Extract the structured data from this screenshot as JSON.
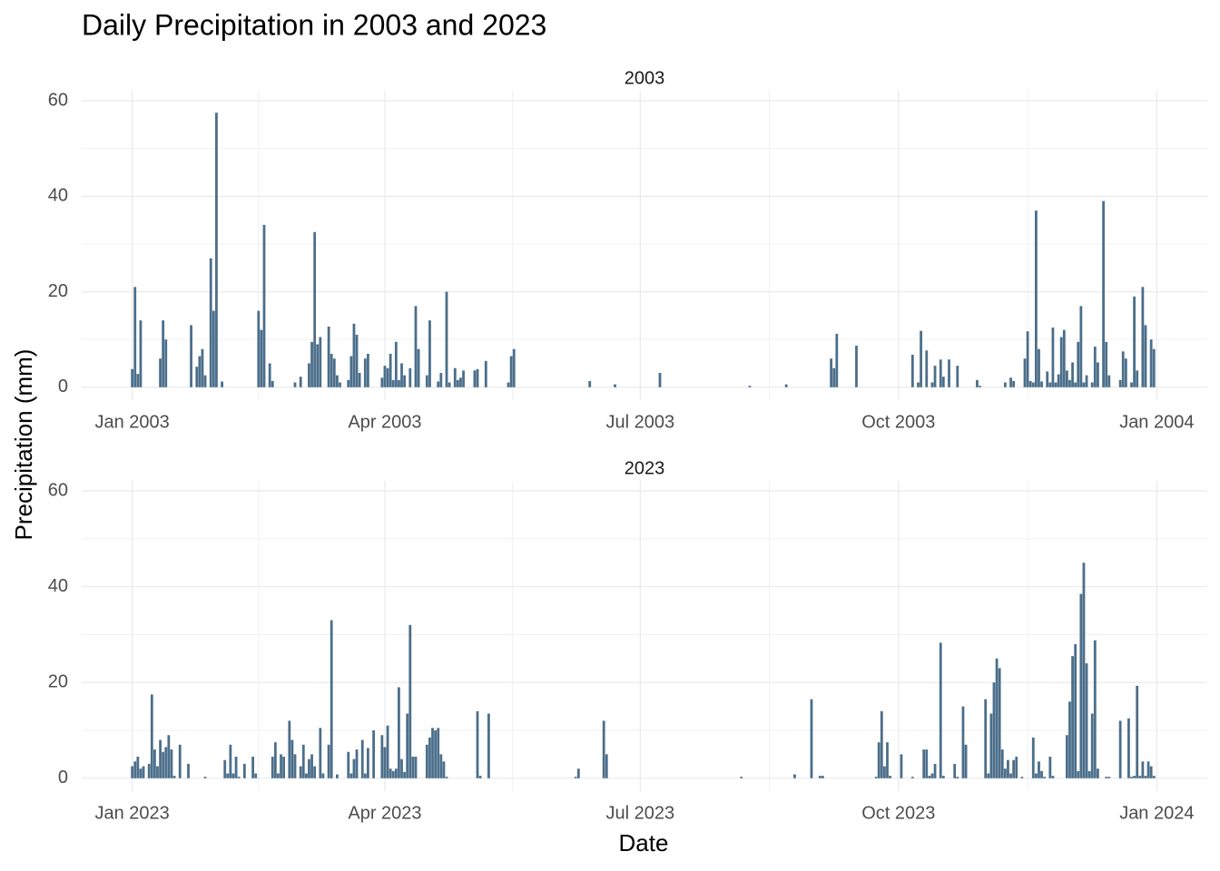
{
  "title": "Daily Precipitation in 2003 and 2023",
  "x_label": "Date",
  "y_label": "Precipitation (mm)",
  "chart_data": [
    {
      "type": "bar",
      "title": "2003",
      "color": "#4b6e8a",
      "grid": true,
      "xlim": [
        "2002-12-14",
        "2004-01-19"
      ],
      "xticks": [
        {
          "value": "2003-01-01",
          "label": "Jan 2003"
        },
        {
          "value": "2003-04-01",
          "label": "Apr 2003"
        },
        {
          "value": "2003-07-01",
          "label": "Jul 2003"
        },
        {
          "value": "2003-10-01",
          "label": "Oct 2003"
        },
        {
          "value": "2004-01-01",
          "label": "Jan 2004"
        }
      ],
      "ylim": [
        -2.7,
        62.1
      ],
      "yticks": [
        0,
        20,
        40,
        60
      ],
      "x": [
        "2003-01-01",
        "2003-01-02",
        "2003-01-03",
        "2003-01-04",
        "2003-01-11",
        "2003-01-12",
        "2003-01-13",
        "2003-01-22",
        "2003-01-24",
        "2003-01-25",
        "2003-01-26",
        "2003-01-27",
        "2003-01-29",
        "2003-01-30",
        "2003-01-31",
        "2003-02-02",
        "2003-02-15",
        "2003-02-16",
        "2003-02-17",
        "2003-02-19",
        "2003-02-20",
        "2003-02-28",
        "2003-03-02",
        "2003-03-05",
        "2003-03-06",
        "2003-03-07",
        "2003-03-08",
        "2003-03-09",
        "2003-03-12",
        "2003-03-13",
        "2003-03-14",
        "2003-03-15",
        "2003-03-16",
        "2003-03-19",
        "2003-03-20",
        "2003-03-21",
        "2003-03-22",
        "2003-03-23",
        "2003-03-25",
        "2003-03-26",
        "2003-03-31",
        "2003-04-01",
        "2003-04-02",
        "2003-04-03",
        "2003-04-04",
        "2003-04-05",
        "2003-04-06",
        "2003-04-07",
        "2003-04-08",
        "2003-04-10",
        "2003-04-12",
        "2003-04-13",
        "2003-04-16",
        "2003-04-17",
        "2003-04-20",
        "2003-04-21",
        "2003-04-23",
        "2003-04-24",
        "2003-04-26",
        "2003-04-27",
        "2003-04-28",
        "2003-04-29",
        "2003-05-03",
        "2003-05-04",
        "2003-05-07",
        "2003-05-15",
        "2003-05-16",
        "2003-05-17",
        "2003-06-13",
        "2003-06-22",
        "2003-07-08",
        "2003-08-09",
        "2003-08-22",
        "2003-09-07",
        "2003-09-08",
        "2003-09-09",
        "2003-09-16",
        "2003-10-06",
        "2003-10-08",
        "2003-10-09",
        "2003-10-11",
        "2003-10-13",
        "2003-10-14",
        "2003-10-16",
        "2003-10-17",
        "2003-10-19",
        "2003-10-22",
        "2003-10-29",
        "2003-10-30",
        "2003-11-08",
        "2003-11-10",
        "2003-11-11",
        "2003-11-15",
        "2003-11-16",
        "2003-11-17",
        "2003-11-18",
        "2003-11-19",
        "2003-11-20",
        "2003-11-21",
        "2003-11-23",
        "2003-11-24",
        "2003-11-25",
        "2003-11-26",
        "2003-11-27",
        "2003-11-28",
        "2003-11-29",
        "2003-11-30",
        "2003-12-01",
        "2003-12-02",
        "2003-12-03",
        "2003-12-04",
        "2003-12-05",
        "2003-12-06",
        "2003-12-07",
        "2003-12-09",
        "2003-12-10",
        "2003-12-11",
        "2003-12-13",
        "2003-12-14",
        "2003-12-15",
        "2003-12-19",
        "2003-12-20",
        "2003-12-21",
        "2003-12-23",
        "2003-12-24",
        "2003-12-25",
        "2003-12-27",
        "2003-12-28",
        "2003-12-30",
        "2003-12-31"
      ],
      "values": [
        3.8,
        21,
        2.8,
        14,
        6,
        14,
        10,
        13,
        4.3,
        6.5,
        8,
        2.5,
        27,
        16,
        57.5,
        1.2,
        16,
        12,
        34,
        5,
        1.3,
        1,
        2.2,
        5,
        9.5,
        32.5,
        9,
        10.5,
        12.7,
        7,
        6,
        2.5,
        1,
        1.5,
        6.5,
        13.3,
        11,
        3,
        6,
        7,
        2,
        4.5,
        4,
        7,
        1.5,
        9.5,
        1.5,
        5,
        2.5,
        4,
        17,
        8,
        2.5,
        14,
        1.2,
        3,
        20,
        1,
        4,
        1.5,
        2,
        3.5,
        3.5,
        3.8,
        5.5,
        1,
        6.5,
        8,
        1.3,
        0.6,
        3,
        0.3,
        0.6,
        6,
        4,
        11.2,
        8.7,
        6.8,
        1,
        11.8,
        7.7,
        1,
        4.5,
        5.8,
        2.2,
        5.8,
        4.5,
        1.5,
        0.3,
        1,
        2,
        1.3,
        6,
        11.7,
        1.3,
        1,
        37,
        8,
        1.2,
        3.3,
        1,
        12.5,
        1,
        2.7,
        10.5,
        12,
        3.5,
        1.5,
        5.2,
        1,
        9.5,
        17,
        1,
        2.5,
        1,
        8.5,
        5.2,
        39,
        9.5,
        2.5,
        1.5,
        7.5,
        6,
        1,
        19,
        3.5,
        21,
        13,
        10,
        8
      ]
    },
    {
      "type": "bar",
      "title": "2023",
      "color": "#4b6e8a",
      "grid": true,
      "xlim": [
        "2022-12-14",
        "2024-01-19"
      ],
      "xticks": [
        {
          "value": "2023-01-01",
          "label": "Jan 2023"
        },
        {
          "value": "2023-04-01",
          "label": "Apr 2023"
        },
        {
          "value": "2023-07-01",
          "label": "Jul 2023"
        },
        {
          "value": "2023-10-01",
          "label": "Oct 2023"
        },
        {
          "value": "2024-01-01",
          "label": "Jan 2024"
        }
      ],
      "ylim": [
        -2.7,
        62.1
      ],
      "yticks": [
        0,
        20,
        40,
        60
      ],
      "x": [
        "2023-01-01",
        "2023-01-02",
        "2023-01-03",
        "2023-01-04",
        "2023-01-05",
        "2023-01-07",
        "2023-01-08",
        "2023-01-09",
        "2023-01-10",
        "2023-01-11",
        "2023-01-12",
        "2023-01-13",
        "2023-01-14",
        "2023-01-15",
        "2023-01-16",
        "2023-01-18",
        "2023-01-21",
        "2023-01-27",
        "2023-02-03",
        "2023-02-04",
        "2023-02-05",
        "2023-02-06",
        "2023-02-07",
        "2023-02-08",
        "2023-02-10",
        "2023-02-13",
        "2023-02-14",
        "2023-02-20",
        "2023-02-21",
        "2023-02-22",
        "2023-02-23",
        "2023-02-24",
        "2023-02-26",
        "2023-02-27",
        "2023-02-28",
        "2023-03-02",
        "2023-03-03",
        "2023-03-04",
        "2023-03-05",
        "2023-03-06",
        "2023-03-07",
        "2023-03-09",
        "2023-03-10",
        "2023-03-12",
        "2023-03-13",
        "2023-03-15",
        "2023-03-19",
        "2023-03-20",
        "2023-03-21",
        "2023-03-22",
        "2023-03-24",
        "2023-03-25",
        "2023-03-26",
        "2023-03-28",
        "2023-03-31",
        "2023-04-01",
        "2023-04-02",
        "2023-04-03",
        "2023-04-04",
        "2023-04-05",
        "2023-04-06",
        "2023-04-07",
        "2023-04-08",
        "2023-04-09",
        "2023-04-10",
        "2023-04-11",
        "2023-04-12",
        "2023-04-16",
        "2023-04-17",
        "2023-04-18",
        "2023-04-19",
        "2023-04-20",
        "2023-04-21",
        "2023-04-22",
        "2023-04-23",
        "2023-05-04",
        "2023-05-05",
        "2023-05-08",
        "2023-06-08",
        "2023-06-09",
        "2023-06-18",
        "2023-06-19",
        "2023-08-06",
        "2023-08-25",
        "2023-08-31",
        "2023-09-03",
        "2023-09-04",
        "2023-09-23",
        "2023-09-24",
        "2023-09-25",
        "2023-09-26",
        "2023-09-27",
        "2023-09-28",
        "2023-10-02",
        "2023-10-06",
        "2023-10-10",
        "2023-10-11",
        "2023-10-12",
        "2023-10-13",
        "2023-10-14",
        "2023-10-16",
        "2023-10-17",
        "2023-10-21",
        "2023-10-22",
        "2023-10-24",
        "2023-10-25",
        "2023-11-01",
        "2023-11-02",
        "2023-11-03",
        "2023-11-04",
        "2023-11-05",
        "2023-11-06",
        "2023-11-07",
        "2023-11-08",
        "2023-11-09",
        "2023-11-10",
        "2023-11-11",
        "2023-11-12",
        "2023-11-14",
        "2023-11-18",
        "2023-11-19",
        "2023-11-20",
        "2023-11-21",
        "2023-11-22",
        "2023-11-24",
        "2023-11-25",
        "2023-11-30",
        "2023-12-01",
        "2023-12-02",
        "2023-12-03",
        "2023-12-04",
        "2023-12-05",
        "2023-12-06",
        "2023-12-07",
        "2023-12-08",
        "2023-12-09",
        "2023-12-10",
        "2023-12-11",
        "2023-12-14",
        "2023-12-15",
        "2023-12-19",
        "2023-12-22",
        "2023-12-23",
        "2023-12-24",
        "2023-12-25",
        "2023-12-26",
        "2023-12-27",
        "2023-12-28",
        "2023-12-29",
        "2023-12-30",
        "2023-12-31"
      ],
      "values": [
        2.5,
        3.5,
        4.5,
        2,
        2.5,
        3,
        17.5,
        6,
        2.5,
        8,
        5.5,
        6.5,
        9,
        6,
        0.5,
        7,
        3,
        0.3,
        3.8,
        1,
        7,
        1,
        4.5,
        0.3,
        3,
        4.5,
        1,
        4.5,
        7.5,
        1,
        5,
        4.5,
        12,
        8,
        5,
        2.5,
        7,
        1,
        4,
        5,
        2.5,
        10.5,
        1,
        7,
        33,
        0.8,
        5.5,
        1,
        4,
        6,
        8,
        1,
        6.3,
        10,
        9,
        6.5,
        11,
        2,
        1.5,
        2,
        19,
        4,
        1.3,
        13.5,
        32,
        4.5,
        4.5,
        7,
        8.5,
        10.5,
        10,
        10.5,
        5,
        3.5,
        0.3,
        14,
        0.5,
        13.5,
        0.3,
        2,
        12,
        5,
        0.3,
        0.8,
        16.5,
        0.5,
        0.5,
        0.3,
        7.5,
        14,
        2.5,
        7.5,
        0.5,
        5,
        0.3,
        6,
        6,
        0.5,
        1,
        3,
        28.3,
        0.5,
        3,
        0.3,
        15,
        7,
        16.5,
        1,
        13.5,
        20,
        25,
        23,
        6,
        2,
        3.8,
        1,
        3.8,
        4.5,
        0.3,
        8.5,
        1,
        3.5,
        1.5,
        0.3,
        4.5,
        0.5,
        9,
        16,
        25.5,
        28,
        1.5,
        38.5,
        45,
        24,
        1.5,
        13.5,
        28.8,
        2,
        0.3,
        0.3,
        12,
        12.5,
        0.3,
        0.5,
        19.3,
        0.5,
        3.5,
        0.5,
        3.5,
        2.5,
        0.5
      ]
    }
  ]
}
